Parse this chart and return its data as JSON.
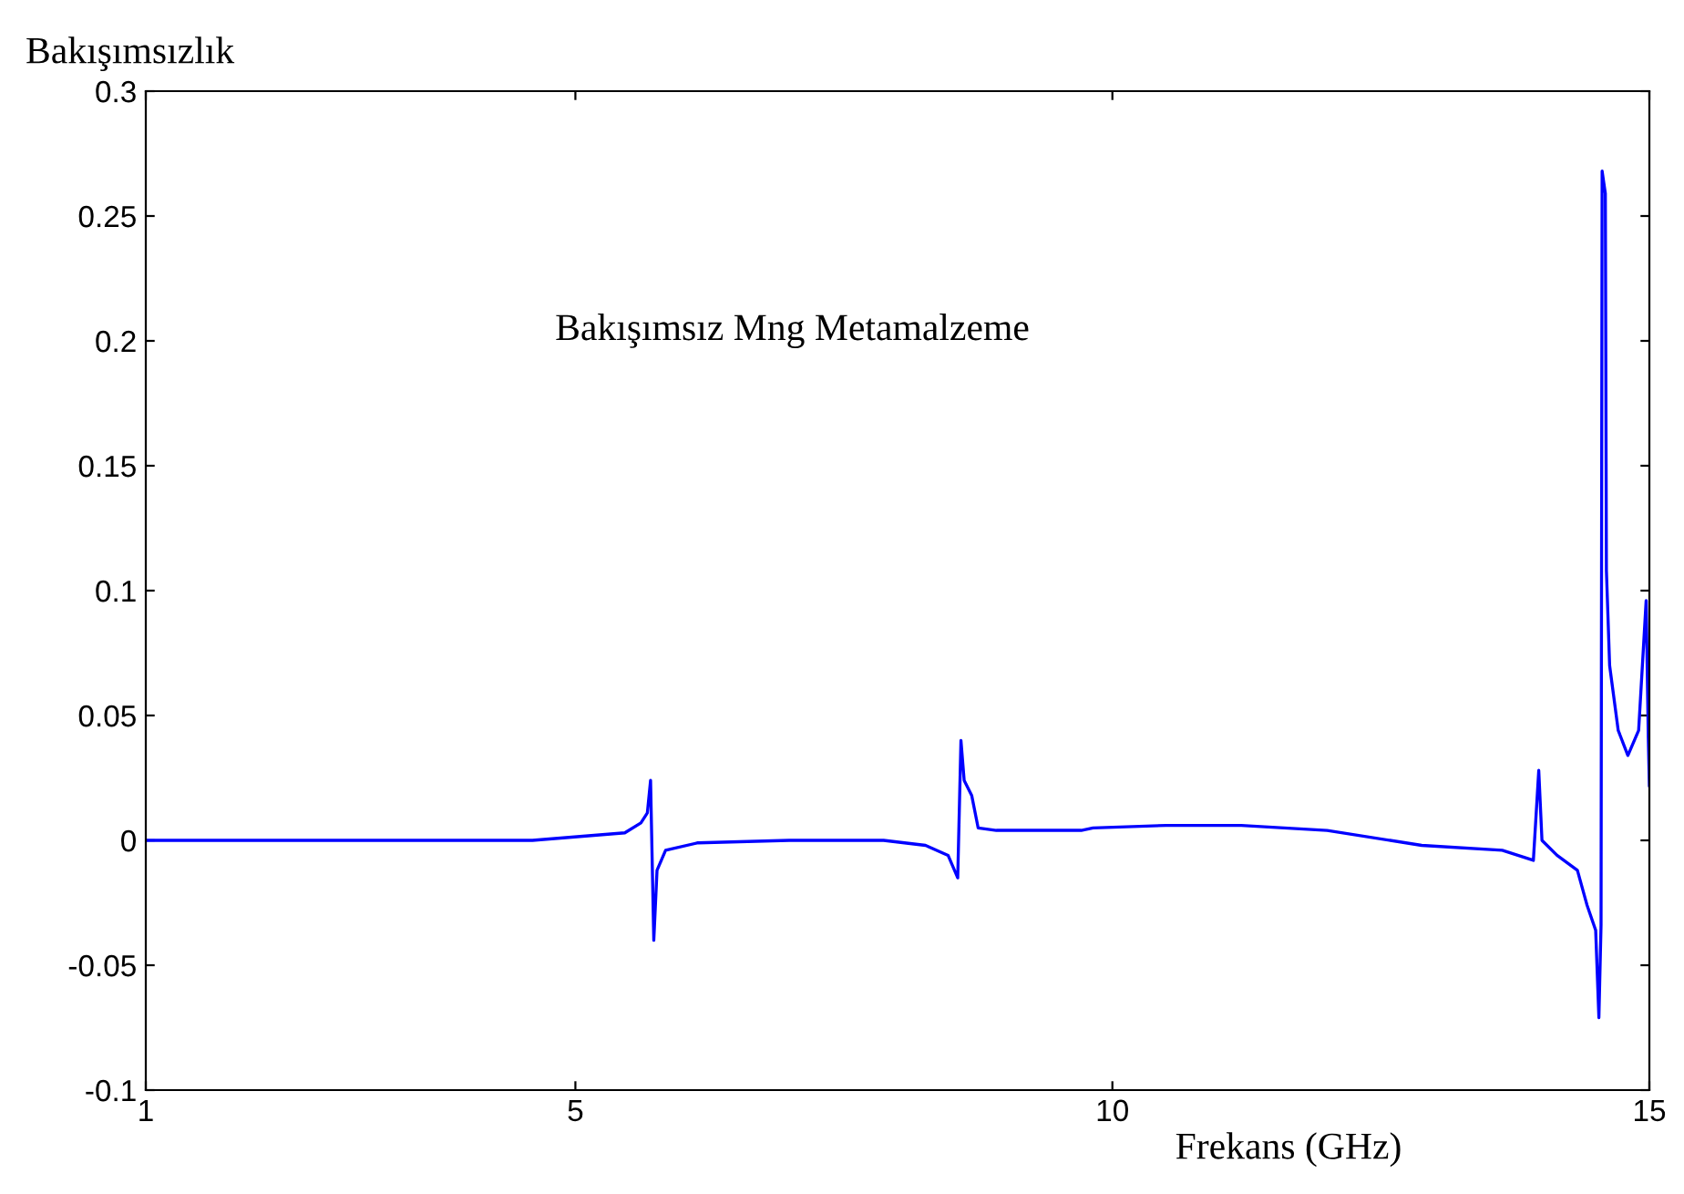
{
  "chart_data": {
    "type": "line",
    "ylabel": "Bakışımsızlık",
    "xlabel": "Frekans (GHz)",
    "annotations": [
      "Bakışımsız Mng Metamalzeme"
    ],
    "xlim": [
      1,
      15
    ],
    "xticks": [
      1,
      5,
      10,
      15
    ],
    "ylim": [
      -0.1,
      0.3
    ],
    "yticks": [
      -0.1,
      -0.05,
      0,
      0.05,
      0.1,
      0.15,
      0.2,
      0.25,
      0.3
    ],
    "grid": false,
    "legend": false,
    "series": [
      {
        "color": "#0000ff",
        "x": [
          1,
          3,
          4.6,
          5.46,
          5.61,
          5.67,
          5.7,
          5.73,
          5.76,
          5.84,
          6.14,
          6.99,
          7.87,
          8.26,
          8.47,
          8.56,
          8.59,
          8.62,
          8.69,
          8.75,
          8.92,
          9.71,
          9.82,
          10.5,
          11.2,
          12.0,
          12.88,
          13.63,
          13.92,
          13.97,
          14.0,
          14.14,
          14.33,
          14.42,
          14.5,
          14.53,
          14.55,
          14.56,
          14.59,
          14.6,
          14.63,
          14.71,
          14.8,
          14.9,
          14.97,
          14.99,
          15.0
        ],
        "values": [
          0,
          0,
          0,
          0.003,
          0.007,
          0.011,
          0.024,
          -0.04,
          -0.012,
          -0.004,
          -0.001,
          0,
          0,
          -0.002,
          -0.006,
          -0.015,
          0.04,
          0.024,
          0.018,
          0.005,
          0.004,
          0.004,
          0.005,
          0.006,
          0.006,
          0.004,
          -0.002,
          -0.004,
          -0.008,
          0.028,
          0,
          -0.006,
          -0.012,
          -0.026,
          -0.036,
          -0.071,
          -0.034,
          0.268,
          0.259,
          0.108,
          0.07,
          0.044,
          0.034,
          0.044,
          0.096,
          0.041,
          0.022
        ]
      }
    ]
  }
}
